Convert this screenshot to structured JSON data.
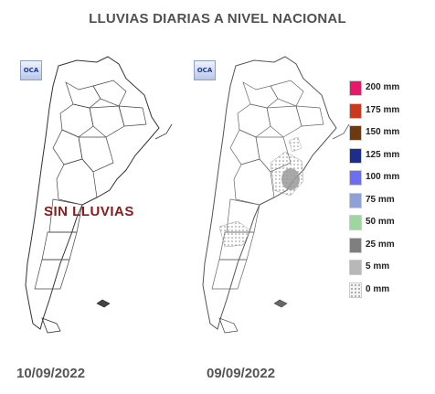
{
  "title": "LLUVIAS DIARIAS A NIVEL NACIONAL",
  "logo": "OCA",
  "left_map": {
    "date": "10/09/2022",
    "overlay_text": "SIN LLUVIAS"
  },
  "right_map": {
    "date": "09/09/2022"
  },
  "legend": [
    {
      "label": "200 mm",
      "color": "#e8176a"
    },
    {
      "label": "175 mm",
      "color": "#c8391e"
    },
    {
      "label": "150 mm",
      "color": "#6b3a12"
    },
    {
      "label": "125 mm",
      "color": "#1d2e8a"
    },
    {
      "label": "100 mm",
      "color": "#6e6ef0"
    },
    {
      "label": "75 mm",
      "color": "#8ea2d8"
    },
    {
      "label": "50 mm",
      "color": "#9fd69f"
    },
    {
      "label": "25 mm",
      "color": "#7f7f7f"
    },
    {
      "label": "5 mm",
      "color": "#b8b8b8"
    },
    {
      "label": "0 mm",
      "color": "#f4f4f4"
    }
  ]
}
